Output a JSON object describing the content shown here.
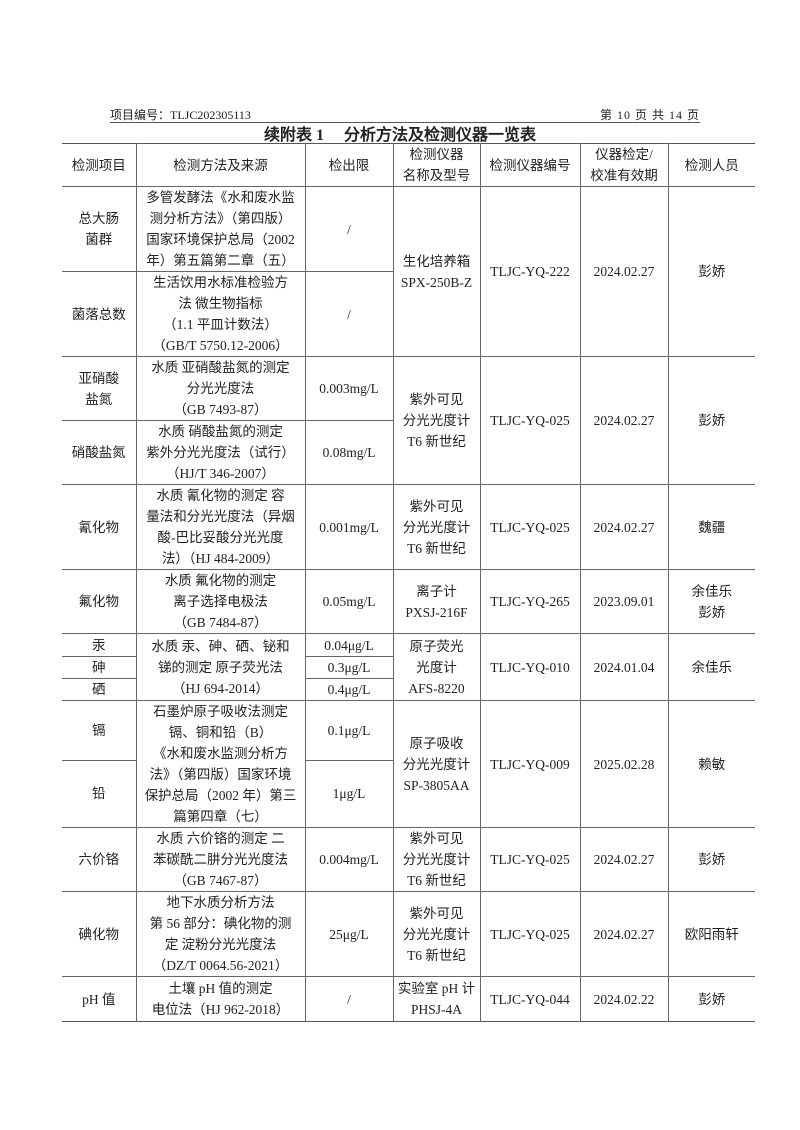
{
  "header": {
    "project_no": "项目编号：TLJC202305113",
    "page": "第 10 页 共 14 页"
  },
  "title": "续附表 1　 分析方法及检测仪器一览表",
  "columns": [
    "检测项目",
    "检测方法及来源",
    "检出限",
    "检测仪器\n名称及型号",
    "检测仪器编号",
    "仪器检定/\n校准有效期",
    "检测人员"
  ],
  "rows": [
    {
      "item": "总大肠\n菌群",
      "method": "多管发酵法《水和废水监\n测分析方法》（第四版）\n国家环境保护总局（2002\n年）第五篇第二章（五）",
      "limit": "/",
      "instrument": "生化培养箱\nSPX-250B-Z",
      "id": "TLJC-YQ-222",
      "date": "2024.02.27",
      "person": "彭娇"
    },
    {
      "item": "菌落总数",
      "method": "生活饮用水标准检验方\n法 微生物指标\n（1.1 平皿计数法）\n（GB/T 5750.12-2006）",
      "limit": "/"
    },
    {
      "item": "亚硝酸\n盐氮",
      "method": "水质 亚硝酸盐氮的测定\n分光光度法\n（GB 7493-87）",
      "limit": "0.003mg/L",
      "instrument": "紫外可见\n分光光度计\nT6 新世纪",
      "id": "TLJC-YQ-025",
      "date": "2024.02.27",
      "person": "彭娇"
    },
    {
      "item": "硝酸盐氮",
      "method": "水质 硝酸盐氮的测定\n紫外分光光度法（试行）\n（HJ/T 346-2007）",
      "limit": "0.08mg/L"
    },
    {
      "item": "氰化物",
      "method": "水质 氰化物的测定 容\n量法和分光光度法（异烟\n酸-巴比妥酸分光光度\n法）（HJ 484-2009）",
      "limit": "0.001mg/L",
      "instrument": "紫外可见\n分光光度计\nT6 新世纪",
      "id": "TLJC-YQ-025",
      "date": "2024.02.27",
      "person": "魏疆"
    },
    {
      "item": "氟化物",
      "method": "水质 氟化物的测定\n离子选择电极法\n（GB 7484-87）",
      "limit": "0.05mg/L",
      "instrument": "离子计\nPXSJ-216F",
      "id": "TLJC-YQ-265",
      "date": "2023.09.01",
      "person": "余佳乐\n彭娇"
    },
    {
      "item": "汞",
      "method": "水质 汞、砷、硒、铋和\n锑的测定 原子荧光法\n（HJ 694-2014）",
      "limit": "0.04μg/L",
      "instrument": "原子荧光\n光度计\nAFS-8220",
      "id": "TLJC-YQ-010",
      "date": "2024.01.04",
      "person": "余佳乐"
    },
    {
      "item": "砷",
      "limit": "0.3μg/L"
    },
    {
      "item": "硒",
      "limit": "0.4μg/L"
    },
    {
      "item": "镉",
      "method": "石墨炉原子吸收法测定\n镉、铜和铅（B）\n《水和废水监测分析方\n法》（第四版）国家环境\n保护总局（2002 年）第三\n篇第四章（七）",
      "limit": "0.1μg/L",
      "instrument": "原子吸收\n分光光度计\nSP-3805AA",
      "id": "TLJC-YQ-009",
      "date": "2025.02.28",
      "person": "赖敏"
    },
    {
      "item": "铅",
      "limit": "1μg/L"
    },
    {
      "item": "六价铬",
      "method": "水质 六价铬的测定 二\n苯碳酰二肼分光光度法\n（GB 7467-87）",
      "limit": "0.004mg/L",
      "instrument": "紫外可见\n分光光度计\nT6 新世纪",
      "id": "TLJC-YQ-025",
      "date": "2024.02.27",
      "person": "彭娇"
    },
    {
      "item": "碘化物",
      "method": "地下水质分析方法\n第 56 部分：碘化物的测\n定 淀粉分光光度法\n（DZ/T 0064.56-2021）",
      "limit": "25μg/L",
      "instrument": "紫外可见\n分光光度计\nT6 新世纪",
      "id": "TLJC-YQ-025",
      "date": "2024.02.27",
      "person": "欧阳雨轩"
    },
    {
      "item": "pH 值",
      "method": "土壤 pH 值的测定\n电位法（HJ 962-2018）",
      "limit": "/",
      "instrument": "实验室 pH 计\nPHSJ-4A",
      "id": "TLJC-YQ-044",
      "date": "2024.02.22",
      "person": "彭娇"
    }
  ]
}
